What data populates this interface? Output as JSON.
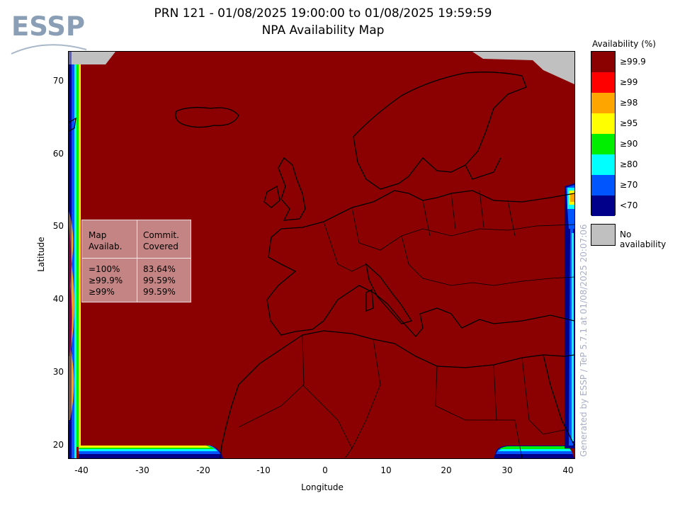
{
  "title": {
    "line1": "PRN 121 - 01/08/2025 19:00:00 to 01/08/2025 19:59:59",
    "line2": "NPA Availability Map"
  },
  "logo": {
    "text": "ESSP",
    "color": "#8a9fb5"
  },
  "axes": {
    "xlabel": "Longitude",
    "ylabel": "Latitude",
    "xticks": [
      "-40",
      "-30",
      "-20",
      "-10",
      "0",
      "10",
      "20",
      "30",
      "40"
    ],
    "yticks": [
      "70",
      "60",
      "50",
      "40",
      "30",
      "20"
    ],
    "xlim": [
      -42,
      42
    ],
    "ylim": [
      18,
      74
    ]
  },
  "stats": {
    "col1_header": [
      "Map",
      "Availab."
    ],
    "col2_header": [
      "Commit.",
      "Covered"
    ],
    "rows": [
      {
        "label": "=100%",
        "value": "83.64%"
      },
      {
        "label": "≥99.9%",
        "value": "99.59%"
      },
      {
        "label": "≥99%",
        "value": "99.59%"
      }
    ]
  },
  "legend": {
    "title": "Availability (%)",
    "items": [
      {
        "label": "≥99.9",
        "color": "#8b0000"
      },
      {
        "label": "≥99",
        "color": "#ff0000"
      },
      {
        "label": "≥98",
        "color": "#ffa500"
      },
      {
        "label": "≥95",
        "color": "#ffff00"
      },
      {
        "label": "≥90",
        "color": "#00ee00"
      },
      {
        "label": "≥80",
        "color": "#00ffff"
      },
      {
        "label": "≥70",
        "color": "#0055ff"
      },
      {
        "label": "<70",
        "color": "#00008b"
      }
    ],
    "no_availability": {
      "label": "No availability",
      "color": "#c0c0c0"
    }
  },
  "credit": "Generated by ESSP / TeP 5.7.1 at 01/08/2025 20:07:06"
}
